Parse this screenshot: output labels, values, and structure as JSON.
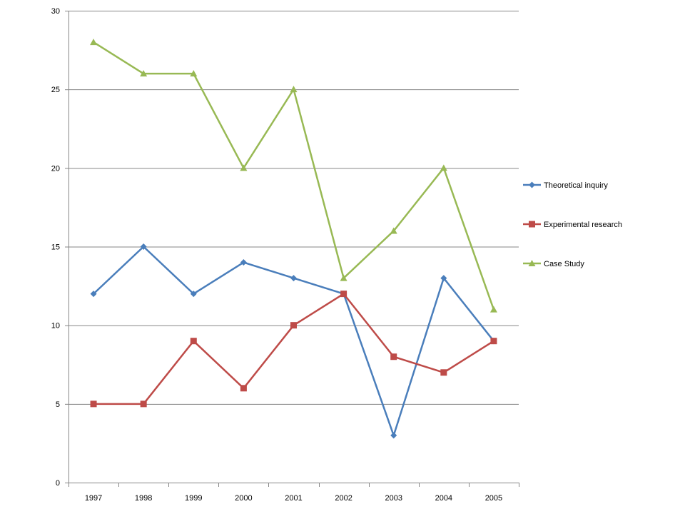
{
  "chart_data": {
    "type": "line",
    "title": "",
    "xlabel": "",
    "ylabel": "",
    "categories": [
      "1997",
      "1998",
      "1999",
      "2000",
      "2001",
      "2002",
      "2003",
      "2004",
      "2005"
    ],
    "ylim": [
      0,
      30
    ],
    "yticks": [
      0,
      5,
      10,
      15,
      20,
      25,
      30
    ],
    "grid": "horizontal",
    "legend_position": "right",
    "series": [
      {
        "name": "Theoretical inquiry",
        "color": "#4a7ebb",
        "marker": "diamond",
        "values": [
          12,
          15,
          12,
          14,
          13,
          12,
          3,
          13,
          9
        ]
      },
      {
        "name": "Experimental research",
        "color": "#be4b48",
        "marker": "square",
        "values": [
          5,
          5,
          9,
          6,
          10,
          12,
          8,
          7,
          9
        ]
      },
      {
        "name": "Case Study",
        "color": "#98b954",
        "marker": "triangle",
        "values": [
          28,
          26,
          26,
          20,
          25,
          13,
          16,
          20,
          11
        ]
      }
    ]
  }
}
